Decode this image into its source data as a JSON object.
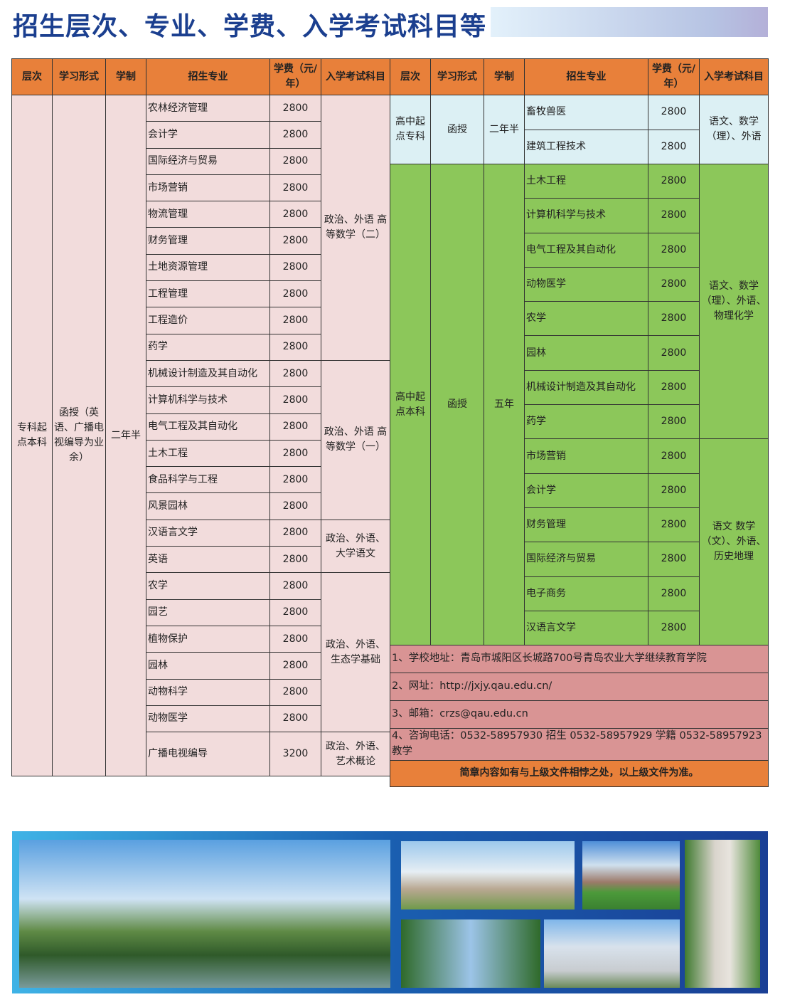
{
  "title": "招生层次、专业、学费、入学考试科目等",
  "headers": [
    "层次",
    "学习形式",
    "学制",
    "招生专业",
    "学费（元/年）",
    "入学考试科目"
  ],
  "left": {
    "level": "专科起点本科",
    "form": "函授（英语、广播电视编导为业余）",
    "duration": "二年半",
    "groups": [
      {
        "exam": "政治、外语 高等数学（二）",
        "majors": [
          [
            "农林经济管理",
            "2800"
          ],
          [
            "会计学",
            "2800"
          ],
          [
            "国际经济与贸易",
            "2800"
          ],
          [
            "市场营销",
            "2800"
          ],
          [
            "物流管理",
            "2800"
          ],
          [
            "财务管理",
            "2800"
          ],
          [
            "土地资源管理",
            "2800"
          ],
          [
            "工程管理",
            "2800"
          ],
          [
            "工程造价",
            "2800"
          ],
          [
            "药学",
            "2800"
          ]
        ]
      },
      {
        "exam": "政治、外语 高等数学（一）",
        "majors": [
          [
            "机械设计制造及其自动化",
            "2800"
          ],
          [
            "计算机科学与技术",
            "2800"
          ],
          [
            "电气工程及其自动化",
            "2800"
          ],
          [
            "土木工程",
            "2800"
          ],
          [
            "食品科学与工程",
            "2800"
          ],
          [
            "风景园林",
            "2800"
          ]
        ]
      },
      {
        "exam": "政治、外语、大学语文",
        "majors": [
          [
            "汉语言文学",
            "2800"
          ],
          [
            "英语",
            "2800"
          ]
        ]
      },
      {
        "exam": "政治、外语、生态学基础",
        "majors": [
          [
            "农学",
            "2800"
          ],
          [
            "园艺",
            "2800"
          ],
          [
            "植物保护",
            "2800"
          ],
          [
            "园林",
            "2800"
          ],
          [
            "动物科学",
            "2800"
          ],
          [
            "动物医学",
            "2800"
          ]
        ]
      },
      {
        "exam": "政治、外语、艺术概论",
        "majors": [
          [
            "广播电视编导",
            "3200"
          ]
        ]
      }
    ]
  },
  "right": {
    "blocks": [
      {
        "level": "高中起点专科",
        "form": "函授",
        "duration": "二年半",
        "color": "#dcf0f4",
        "groups": [
          {
            "exam": "语文、数学（理）、外语",
            "majors": [
              [
                "畜牧兽医",
                "2800"
              ],
              [
                "建筑工程技术",
                "2800"
              ]
            ]
          }
        ]
      },
      {
        "level": "高中起点本科",
        "form": "函授",
        "duration": "五年",
        "color": "#8cc75a",
        "groups": [
          {
            "exam": "语文、数学（理）、外语、物理化学",
            "majors": [
              [
                "土木工程",
                "2800"
              ],
              [
                "计算机科学与技术",
                "2800"
              ],
              [
                "电气工程及其自动化",
                "2800"
              ],
              [
                "动物医学",
                "2800"
              ],
              [
                "农学",
                "2800"
              ],
              [
                "园林",
                "2800"
              ],
              [
                "机械设计制造及其自动化",
                "2800"
              ],
              [
                "药学",
                "2800"
              ]
            ]
          },
          {
            "exam": "语文 数学（文）、外语、历史地理",
            "majors": [
              [
                "市场营销",
                "2800"
              ],
              [
                "会计学",
                "2800"
              ],
              [
                "财务管理",
                "2800"
              ],
              [
                "国际经济与贸易",
                "2800"
              ],
              [
                "电子商务",
                "2800"
              ],
              [
                "汉语言文学",
                "2800"
              ]
            ]
          }
        ]
      }
    ],
    "info": [
      "1、学校地址：青岛市城阳区长城路700号青岛农业大学继续教育学院",
      "2、网址：http://jxjy.qau.edu.cn/",
      "3、邮箱：crzs@qau.edu.cn",
      "4、咨询电话：0532-58957930 招生   0532-58957929 学籍   0532-58957923 教学"
    ],
    "note": "简章内容如有与上级文件相悖之处，以上级文件为准。"
  },
  "colors": {
    "header": "#e8803a",
    "title": "#1b3f8f",
    "pink": "#f2dcdc",
    "green": "#8cc75a",
    "info": "#d99494"
  }
}
